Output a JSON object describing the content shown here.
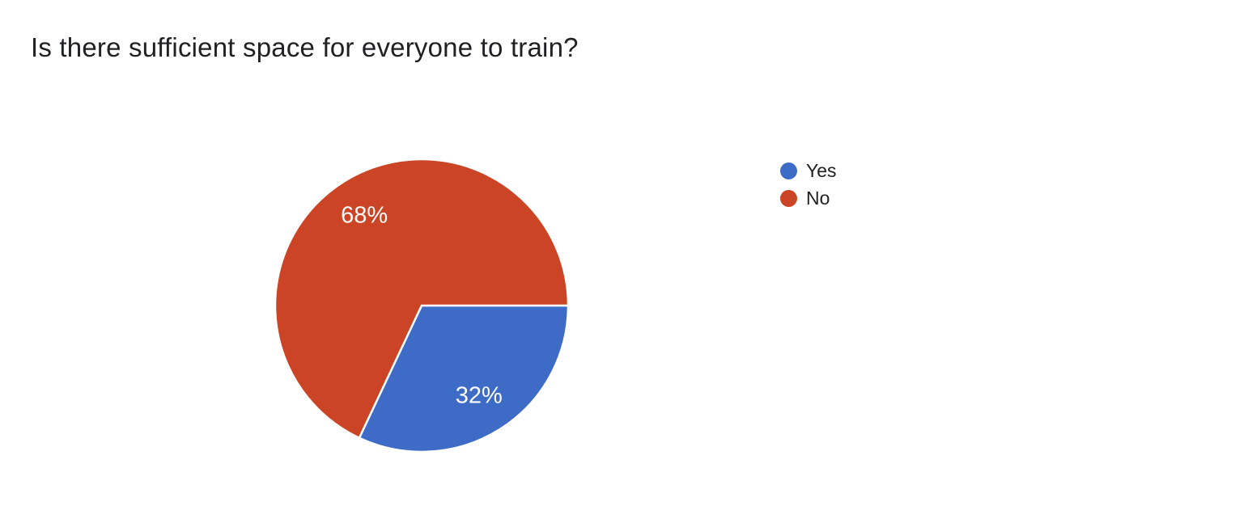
{
  "window": {
    "background_color": "#ffffff"
  },
  "question": {
    "title": "Is there sufficient space for everyone to train?"
  },
  "chart_data": {
    "type": "pie",
    "title": "Is there sufficient space for everyone to train?",
    "slices": [
      {
        "label": "Yes",
        "value": 32,
        "display_label": "32%",
        "color": "#3E6BC6"
      },
      {
        "label": "No",
        "value": 68,
        "display_label": "68%",
        "color": "#CB4425"
      }
    ],
    "total_percent": 100,
    "start_angle_deg": 0,
    "direction": "clockwise",
    "slice_label_color": "#FFFFFF",
    "slice_border_color": "#FFFFFF",
    "legend": {
      "position": "right",
      "items": [
        "Yes",
        "No"
      ]
    }
  }
}
